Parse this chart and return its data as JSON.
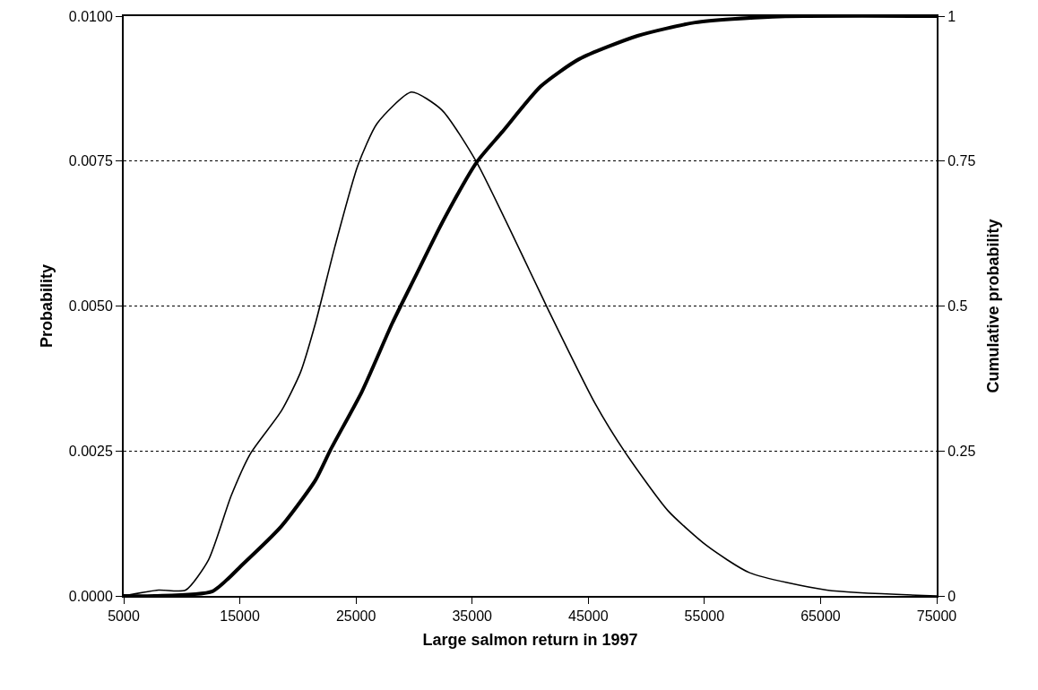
{
  "chart_data": {
    "type": "line",
    "xlabel": "Large salmon return in 1997",
    "ylabel": "Probability",
    "y2label": "Cumulative probability",
    "xlim": [
      5000,
      75000
    ],
    "xticks": [
      5000,
      15000,
      25000,
      35000,
      45000,
      55000,
      65000,
      75000
    ],
    "ylim": [
      0,
      0.01
    ],
    "yticks": [
      {
        "value": 0,
        "label": "0.0000"
      },
      {
        "value": 0.0025,
        "label": "0.0025"
      },
      {
        "value": 0.005,
        "label": "0.0050"
      },
      {
        "value": 0.0075,
        "label": "0.0075"
      },
      {
        "value": 0.01,
        "label": "0.0100"
      }
    ],
    "y2lim": [
      0,
      1
    ],
    "y2ticks": [
      0,
      0.25,
      0.5,
      0.75,
      1
    ],
    "grid": "y",
    "marker": "none",
    "line_style": "solid",
    "series": [
      {
        "color": "#000000",
        "x": [
          5000,
          8000,
          10330,
          12300,
          14260,
          15930,
          18570,
          20210,
          21520,
          23190,
          25150,
          26820,
          29780,
          32400,
          35390,
          39900,
          41570,
          45560,
          48230,
          51860,
          55180,
          58890,
          65530,
          75000
        ],
        "values": [
          0,
          0.0001,
          0.0001,
          0.00062,
          0.00173,
          0.00246,
          0.00319,
          0.00385,
          0.00471,
          0.00603,
          0.00742,
          0.00815,
          0.00869,
          0.00838,
          0.00748,
          0.00563,
          0.00493,
          0.00333,
          0.00246,
          0.00147,
          0.00087,
          0.0004,
          0.0001,
          0
        ]
      },
      {
        "color": "#000000",
        "axis": "y2",
        "x": [
          5000,
          7680,
          12650,
          15270,
          18570,
          21520,
          22830,
          25500,
          28140,
          30090,
          32400,
          35390,
          37580,
          40910,
          44220,
          49240,
          54200,
          60870,
          75000
        ],
        "values": [
          0,
          0,
          0.008,
          0.055,
          0.12,
          0.2,
          0.253,
          0.352,
          0.471,
          0.55,
          0.643,
          0.748,
          0.8,
          0.879,
          0.926,
          0.966,
          0.989,
          0.999,
          1
        ]
      }
    ]
  }
}
